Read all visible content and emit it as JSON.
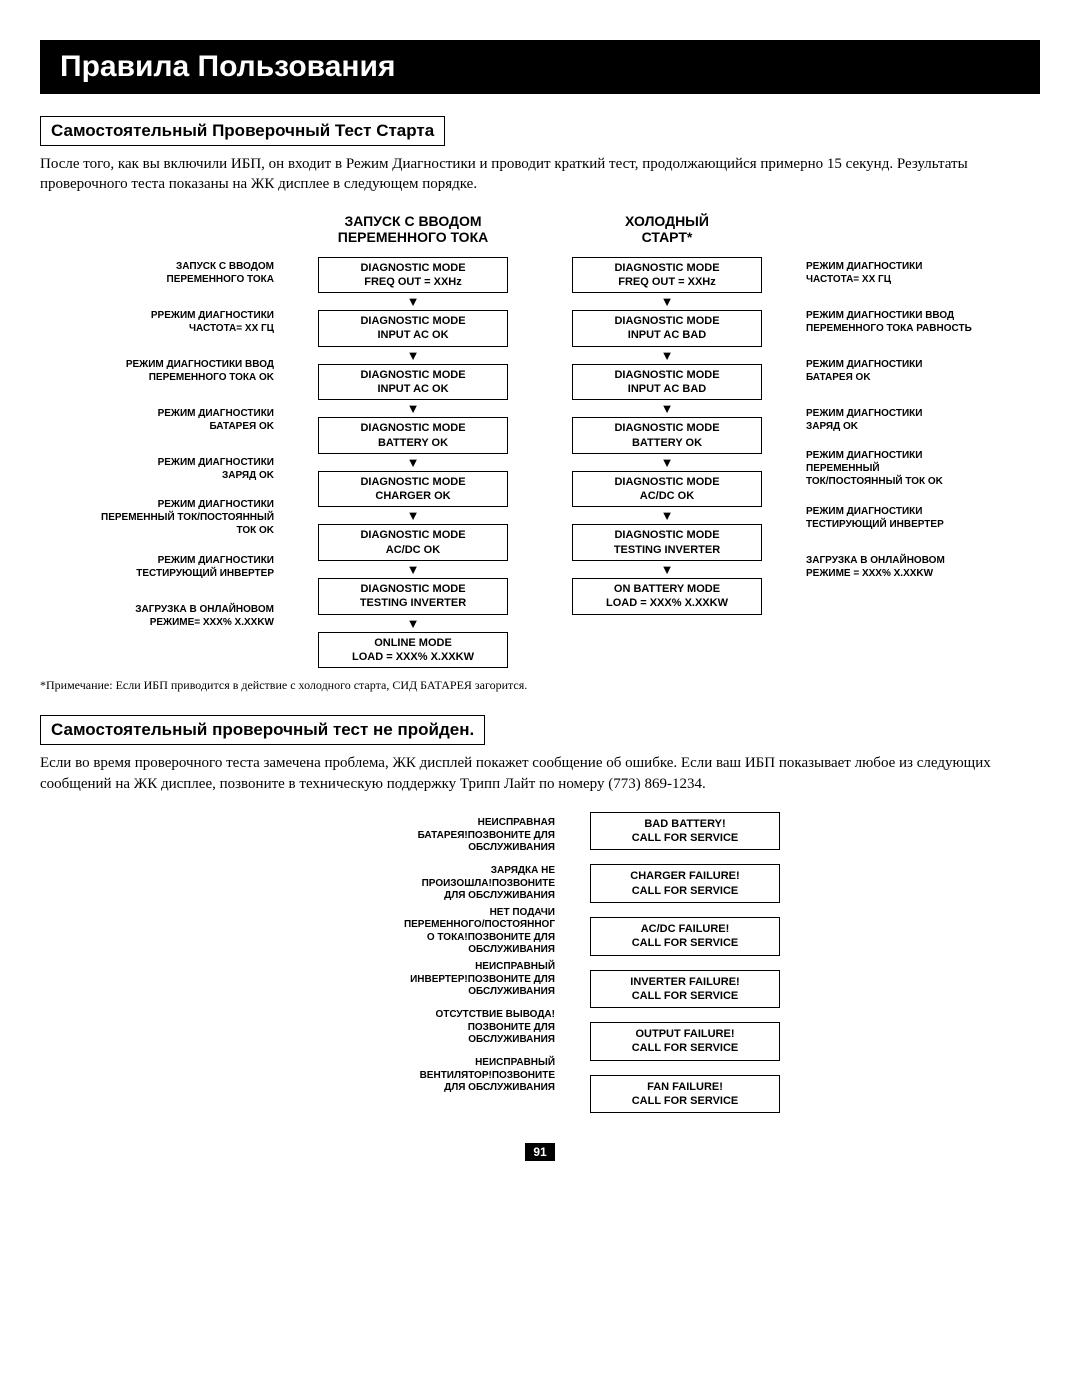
{
  "title": "Правила Пользования",
  "section1": {
    "heading": "Самостоятельный Проверочный Тест Старта",
    "intro": "После того, как вы включили ИБП, он входит в Режим Диагностики и проводит краткий тест, продолжающийся примерно 15 секунд. Результаты проверочного теста показаны на ЖК дисплее в следующем порядке."
  },
  "flow": {
    "headers": {
      "left": "",
      "mid1": "ЗАПУСК С ВВОДОМ\nПЕРЕМЕННОГО ТОКА",
      "mid2": "ХОЛОДНЫЙ\nСТАРТ*",
      "right": ""
    },
    "leftLabels": [
      "ЗАПУСК С ВВОДОМ\nПЕРЕМЕННОГО ТОКА",
      "РРЕЖИМ ДИАГНОСТИКИ\nЧАСТОТА= XX ГЦ",
      "РЕЖИМ ДИАГНОСТИКИ ВВОД\nПЕРЕМЕННОГО ТОКА OK",
      "РЕЖИМ ДИАГНОСТИКИ\nБАТАРЕЯ OK",
      "РЕЖИМ ДИАГНОСТИКИ\nЗАРЯД OK",
      "РЕЖИМ ДИАГНОСТИКИ\nПЕРЕМЕННЫЙ ТОК/ПОСТОЯННЫЙ\nТОК OK",
      "РЕЖИМ ДИАГНОСТИКИ\nТЕСТИРУЮЩИЙ ИНВЕРТЕР",
      "ЗАГРУЗКА В ОНЛАЙНОВОМ\nРЕЖИМЕ= XXX% X.XXKW"
    ],
    "col1": [
      "DIAGNOSTIC MODE\nFREQ OUT = XXHz",
      "DIAGNOSTIC MODE\nINPUT AC OK",
      "DIAGNOSTIC MODE\nINPUT AC OK",
      "DIAGNOSTIC MODE\nBATTERY OK",
      "DIAGNOSTIC MODE\nCHARGER OK",
      "DIAGNOSTIC MODE\nAC/DC OK",
      "DIAGNOSTIC MODE\nTESTING INVERTER",
      "ONLINE MODE\nLOAD = XXX% X.XXKW"
    ],
    "col2": [
      "DIAGNOSTIC MODE\nFREQ OUT = XXHz",
      "DIAGNOSTIC MODE\nINPUT AC BAD",
      "DIAGNOSTIC MODE\nINPUT AC BAD",
      "DIAGNOSTIC MODE\nBATTERY OK",
      "DIAGNOSTIC MODE\nAC/DC OK",
      "DIAGNOSTIC MODE\nTESTING INVERTER",
      "ON BATTERY MODE\nLOAD = XXX% X.XXKW"
    ],
    "rightLabels": [
      "РЕЖИМ ДИАГНОСТИКИ\nЧАСТОТА= XX ГЦ",
      "РЕЖИМ ДИАГНОСТИКИ ВВОД\nПЕРЕМЕННОГО ТОКА РАВНОСТЬ",
      "РЕЖИМ ДИАГНОСТИКИ\nБАТАРЕЯ OK",
      "РЕЖИМ ДИАГНОСТИКИ\nЗАРЯД OK",
      "РЕЖИМ ДИАГНОСТИКИ\nПЕРЕМЕННЫЙ\nТОК/ПОСТОЯННЫЙ ТОК OK",
      "РЕЖИМ ДИАГНОСТИКИ\nТЕСТИРУЮЩИЙ ИНВЕРТЕР",
      "ЗАГРУЗКА В ОНЛАЙНОВОМ\nРЕЖИМЕ = XXX% X.XXKW"
    ]
  },
  "footnote": "*Примечание: Если ИБП приводится в действие с холодного старта, СИД БАТАРЕЯ загорится.",
  "section2": {
    "heading": "Самостоятельный проверочный тест не пройден.",
    "intro": "Если во время проверочного теста замечена проблема, ЖК дисплей покажет сообщение об ошибке. Если ваш ИБП показывает любое из следующих сообщений на ЖК дисплее, позвоните в техническую поддержку Трипп Лайт по номеру (773) 869-1234."
  },
  "fail": {
    "labels": [
      "НЕИСПРАВНАЯ\nБАТАРЕЯ!ПОЗВОНИТЕ ДЛЯ\nОБСЛУЖИВАНИЯ",
      "ЗАРЯДКА НЕ\nПРОИЗОШЛА!ПОЗВОНИТЕ\nДЛЯ ОБСЛУЖИВАНИЯ",
      "НЕТ ПОДАЧИ\nПЕРЕМЕННОГО/ПОСТОЯННОГ\nО ТОКА!ПОЗВОНИТЕ ДЛЯ\nОБСЛУЖИВАНИЯ",
      "НЕИСПРАВНЫЙ\nИНВЕРТЕР!ПОЗВОНИТЕ ДЛЯ\nОБСЛУЖИВАНИЯ",
      "ОТСУТСТВИЕ ВЫВОДА!\nПОЗВОНИТЕ ДЛЯ\nОБСЛУЖИВАНИЯ",
      "НЕИСПРАВНЫЙ\nВЕНТИЛЯТОР!ПОЗВОНИТЕ\nДЛЯ ОБСЛУЖИВАНИЯ"
    ],
    "boxes": [
      "BAD BATTERY!\nCALL FOR SERVICE",
      "CHARGER FAILURE!\nCALL FOR SERVICE",
      "AC/DC FAILURE!\nCALL FOR SERVICE",
      "INVERTER FAILURE!\nCALL FOR SERVICE",
      "OUTPUT FAILURE!\nCALL FOR SERVICE",
      "FAN FAILURE!\nCALL FOR SERVICE"
    ]
  },
  "pageNumber": "91"
}
